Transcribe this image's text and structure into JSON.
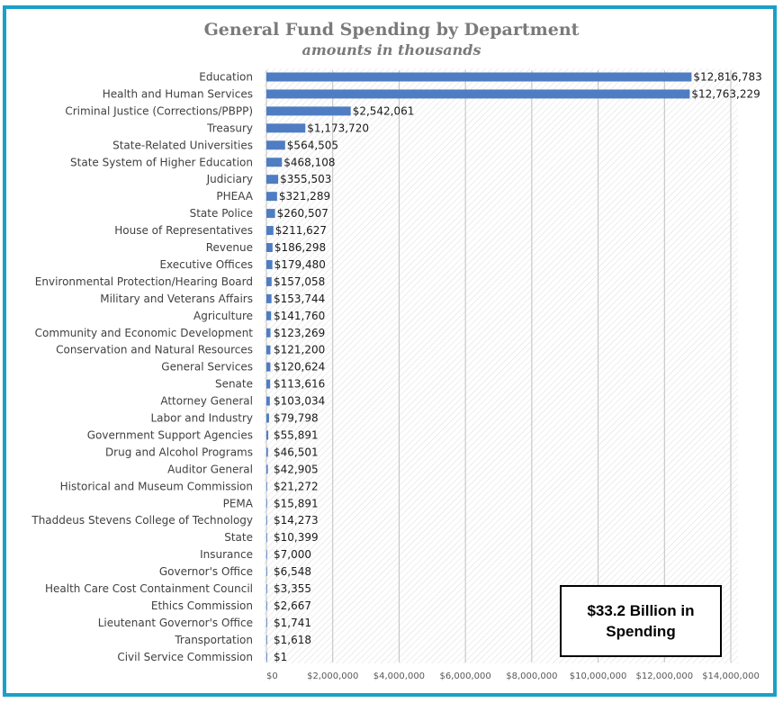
{
  "colors": {
    "bar": "#4f7dc3",
    "border": "#1aa0c6",
    "hatch": "#d4d4d4"
  },
  "chart_data": {
    "type": "bar",
    "orientation": "horizontal",
    "title": "General Fund Spending by Department",
    "subtitle": "amounts in thousands",
    "categories": [
      "Education",
      "Health and Human Services",
      "Criminal Justice (Corrections/PBPP)",
      "Treasury",
      "State-Related Universities",
      "State System of Higher Education",
      "Judiciary",
      "PHEAA",
      "State Police",
      "House of Representatives",
      "Revenue",
      "Executive Offices",
      "Environmental Protection/Hearing Board",
      "Military and Veterans Affairs",
      "Agriculture",
      "Community and Economic Development",
      "Conservation and Natural Resources",
      "General Services",
      "Senate",
      "Attorney General",
      "Labor and Industry",
      "Government Support Agencies",
      "Drug and Alcohol Programs",
      "Auditor General",
      "Historical and Museum Commission",
      "PEMA",
      "Thaddeus Stevens College of Technology",
      "State",
      "Insurance",
      "Governor's Office",
      "Health Care Cost Containment Council",
      "Ethics Commission",
      "Lieutenant Governor's Office",
      "Transportation",
      "Civil Service Commission"
    ],
    "values": [
      12816783,
      12763229,
      2542061,
      1173720,
      564505,
      468108,
      355503,
      321289,
      260507,
      211627,
      186298,
      179480,
      157058,
      153744,
      141760,
      123269,
      121200,
      120624,
      113616,
      103034,
      79798,
      55891,
      46501,
      42905,
      21272,
      15891,
      14273,
      10399,
      7000,
      6548,
      3355,
      2667,
      1741,
      1618,
      1
    ],
    "value_labels": [
      "$12,816,783",
      "$12,763,229",
      "$2,542,061",
      "$1,173,720",
      "$564,505",
      "$468,108",
      "$355,503",
      "$321,289",
      "$260,507",
      "$211,627",
      "$186,298",
      "$179,480",
      "$157,058",
      "$153,744",
      "$141,760",
      "$123,269",
      "$121,200",
      "$120,624",
      "$113,616",
      "$103,034",
      "$79,798",
      "$55,891",
      "$46,501",
      "$42,905",
      "$21,272",
      "$15,891",
      "$14,273",
      "$10,399",
      "$7,000",
      "$6,548",
      "$3,355",
      "$2,667",
      "$1,741",
      "$1,618",
      "$1"
    ],
    "xlim": [
      0,
      14000000
    ],
    "xticks": [
      0,
      2000000,
      4000000,
      6000000,
      8000000,
      10000000,
      12000000,
      14000000
    ],
    "xtick_labels": [
      "$0",
      "$2,000,000",
      "$4,000,000",
      "$6,000,000",
      "$8,000,000",
      "$10,000,000",
      "$12,000,000",
      "$14,000,000"
    ],
    "grid": true,
    "legend": "none"
  },
  "callout": {
    "text": "$33.2 Billion in Spending"
  }
}
